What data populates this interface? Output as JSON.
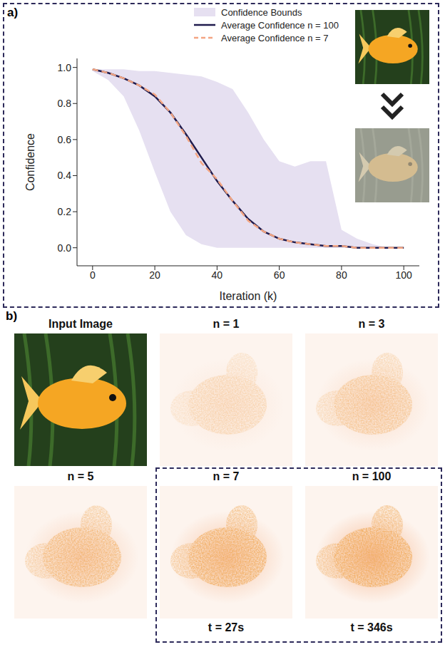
{
  "chart_data": {
    "type": "line",
    "panel_label": "a)",
    "x_label": "Iteration (k)",
    "y_label": "Confidence",
    "x": [
      0,
      5,
      10,
      15,
      20,
      25,
      30,
      35,
      40,
      45,
      50,
      55,
      60,
      65,
      70,
      75,
      80,
      85,
      90,
      95,
      100
    ],
    "series": [
      {
        "name": "Confidence Bounds",
        "type": "area",
        "color": "#e6e0f1",
        "lower": [
          0.98,
          0.93,
          0.84,
          0.65,
          0.42,
          0.2,
          0.07,
          0.02,
          0.0,
          0.0,
          0.0,
          0.0,
          0.0,
          0.0,
          0.0,
          0.0,
          0.0,
          0.0,
          0.0,
          0.0,
          0.0
        ],
        "upper": [
          0.99,
          0.99,
          0.99,
          0.98,
          0.98,
          0.97,
          0.96,
          0.95,
          0.92,
          0.88,
          0.75,
          0.6,
          0.48,
          0.45,
          0.48,
          0.48,
          0.1,
          0.05,
          0.02,
          0.0,
          0.0
        ]
      },
      {
        "name": "Average Confidence n = 100",
        "type": "line",
        "color": "#1f1b4d",
        "line_style": "solid",
        "values": [
          0.99,
          0.97,
          0.94,
          0.9,
          0.84,
          0.75,
          0.63,
          0.5,
          0.37,
          0.26,
          0.16,
          0.09,
          0.05,
          0.03,
          0.02,
          0.01,
          0.01,
          0.0,
          0.0,
          0.0,
          0.0
        ]
      },
      {
        "name": "Average Confidence n = 7",
        "type": "line",
        "color": "#f4a582",
        "line_style": "dashed",
        "values": [
          0.99,
          0.97,
          0.94,
          0.9,
          0.85,
          0.75,
          0.62,
          0.47,
          0.38,
          0.26,
          0.15,
          0.09,
          0.05,
          0.03,
          0.02,
          0.01,
          0.01,
          0.0,
          0.0,
          0.0,
          0.0
        ]
      }
    ],
    "xlim": [
      -5,
      105
    ],
    "xticks": [
      0,
      20,
      40,
      60,
      80,
      100
    ],
    "ylim": [
      -0.1,
      1.05
    ],
    "yticks": [
      {
        "value": 0,
        "label": "0.0"
      },
      {
        "value": 0.2,
        "label": "0.2"
      },
      {
        "value": 0.4,
        "label": "0.4"
      },
      {
        "value": 0.6,
        "label": "0.6"
      },
      {
        "value": 0.8,
        "label": "0.8"
      },
      {
        "value": 1,
        "label": "1.0"
      }
    ],
    "grid": false,
    "legend": "top"
  },
  "panel_b": {
    "panel_label": "b)",
    "input_title": "Input Image",
    "heatmaps": [
      {
        "title": "n = 1"
      },
      {
        "title": "n = 3"
      },
      {
        "title": "n = 5"
      },
      {
        "title": "n = 7",
        "time": "t = 27s"
      },
      {
        "title": "n = 100",
        "time": "t = 346s"
      }
    ]
  }
}
